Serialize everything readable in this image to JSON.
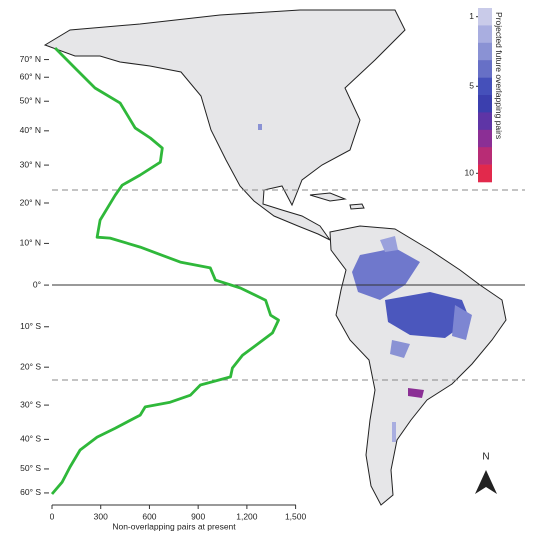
{
  "chart_data": {
    "type": "line",
    "projection": "cylindrical-equal-area",
    "xlabel": "Non-overlapping pairs at present",
    "xlim": [
      0,
      1500
    ],
    "xticks": [
      0,
      300,
      600,
      900,
      {
        "value": 1200,
        "label": "1,200"
      },
      {
        "value": 1500,
        "label": "1,500"
      }
    ],
    "ylim": [
      -61,
      85
    ],
    "yticks": [
      {
        "value": 70,
        "label": "70° N"
      },
      {
        "value": 60,
        "label": "60° N"
      },
      {
        "value": 50,
        "label": "50° N"
      },
      {
        "value": 40,
        "label": "40° N"
      },
      {
        "value": 30,
        "label": "30° N"
      },
      {
        "value": 20,
        "label": "20° N"
      },
      {
        "value": 10,
        "label": "10° N"
      },
      {
        "value": 0,
        "label": "0°"
      },
      {
        "value": -10,
        "label": "10° S"
      },
      {
        "value": -20,
        "label": "20° S"
      },
      {
        "value": -30,
        "label": "30° S"
      },
      {
        "value": -40,
        "label": "40° S"
      },
      {
        "value": -50,
        "label": "50° S"
      },
      {
        "value": -60,
        "label": "60° S"
      }
    ],
    "series": [
      {
        "color": "#2fb83a",
        "values": [
          19,
          142,
          265,
          420,
          512,
          605,
          679,
          667,
          543,
          432,
          389,
          296,
          278,
          358,
          543,
          790,
          975,
          1006,
          1160,
          1315,
          1346,
          1395,
          1358,
          1284,
          1173,
          1111,
          1099,
          914,
          852,
          728,
          574,
          543,
          389,
          278,
          173,
          111,
          62,
          0
        ],
        "y": [
          81,
          64.7,
          55.2,
          49.3,
          40.9,
          37.8,
          34.8,
          30.8,
          27.3,
          24.6,
          22,
          15.7,
          11.5,
          11.3,
          9.1,
          5.5,
          4.1,
          1.2,
          -0.7,
          -3.6,
          -7.2,
          -8.4,
          -11.5,
          -13.7,
          -17,
          -20.2,
          -22.5,
          -24.6,
          -27.3,
          -29.2,
          -30.5,
          -32.8,
          -36.6,
          -39.3,
          -43.4,
          -49.3,
          -55.2,
          -60.5
        ]
      }
    ],
    "colorbar": {
      "title": "Projected future overlapping pairs",
      "range": [
        1,
        10
      ],
      "ticks": [
        1,
        5,
        10
      ],
      "colors": [
        "#c9cbe9",
        "#a9aee0",
        "#8a92d4",
        "#6770c6",
        "#4550ba",
        "#3b3fae",
        "#5e35a6",
        "#8b2f95",
        "#b82c75",
        "#e2294c"
      ]
    },
    "north_label": "N"
  }
}
